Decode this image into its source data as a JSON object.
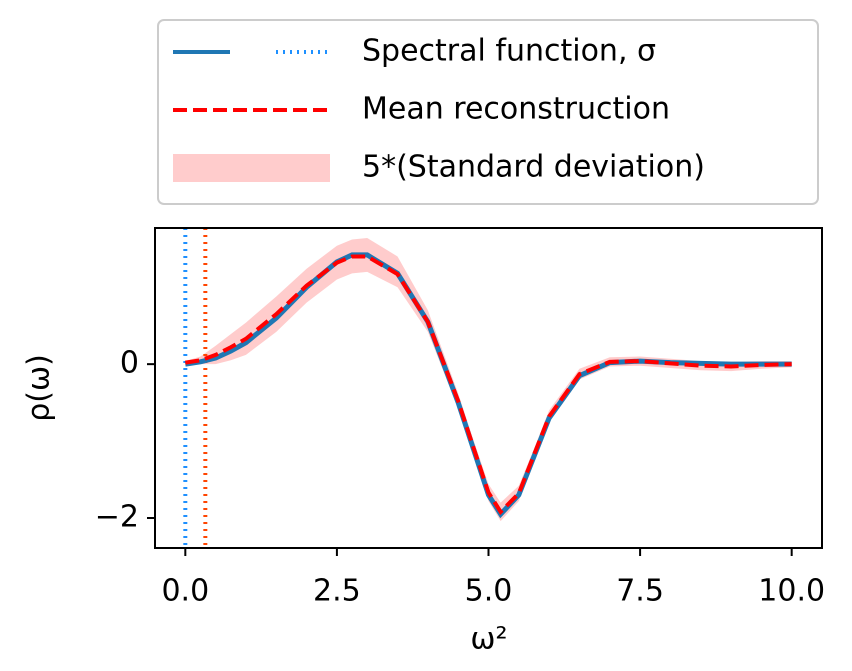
{
  "chart_data": {
    "type": "line",
    "xlabel": "ω²",
    "ylabel": "ρ(ω)",
    "x": [
      0,
      0.25,
      0.5,
      0.75,
      1,
      1.5,
      2,
      2.5,
      2.75,
      3,
      3.5,
      4,
      4.5,
      4.75,
      5,
      5.2,
      5.5,
      5.75,
      6,
      6.5,
      7,
      7.5,
      8,
      8.5,
      9,
      9.5,
      10
    ],
    "series": [
      {
        "name": "Spectral function, σ",
        "color": "#1f77b4",
        "style": "solid",
        "values": [
          0,
          0.03,
          0.08,
          0.17,
          0.28,
          0.6,
          1.0,
          1.33,
          1.42,
          1.42,
          1.18,
          0.55,
          -0.5,
          -1.1,
          -1.7,
          -1.95,
          -1.7,
          -1.2,
          -0.7,
          -0.15,
          0.02,
          0.04,
          0.02,
          0.01,
          0,
          0,
          0
        ]
      },
      {
        "name": "Mean reconstruction",
        "color": "#ff0000",
        "style": "dashed",
        "values": [
          0.02,
          0.05,
          0.12,
          0.22,
          0.33,
          0.65,
          1.02,
          1.32,
          1.4,
          1.4,
          1.17,
          0.55,
          -0.48,
          -1.08,
          -1.67,
          -1.92,
          -1.68,
          -1.18,
          -0.68,
          -0.13,
          0.03,
          0.04,
          0.01,
          -0.02,
          -0.03,
          -0.01,
          0
        ]
      }
    ],
    "band": {
      "name": "5*(Standard deviation)",
      "color": "#ffcccc",
      "lower": [
        0,
        0.0,
        0.0,
        0.05,
        0.12,
        0.42,
        0.8,
        1.1,
        1.18,
        1.2,
        1.0,
        0.42,
        -0.58,
        -1.18,
        -1.78,
        -2.04,
        -1.78,
        -1.26,
        -0.76,
        -0.2,
        -0.03,
        -0.02,
        -0.05,
        -0.08,
        -0.09,
        -0.06,
        -0.04
      ],
      "upper": [
        0.04,
        0.1,
        0.24,
        0.39,
        0.54,
        0.88,
        1.24,
        1.54,
        1.62,
        1.64,
        1.4,
        0.7,
        -0.38,
        -0.98,
        -1.56,
        -1.8,
        -1.58,
        -1.1,
        -0.6,
        -0.06,
        0.09,
        0.1,
        0.07,
        0.04,
        0.03,
        0.04,
        0.04
      ]
    },
    "vlines": [
      {
        "x": 0,
        "color": "#1e90ff"
      },
      {
        "x": 0.33,
        "color": "#ff4500"
      }
    ],
    "xlim": [
      -0.5,
      10.5
    ],
    "ylim": [
      -2.39,
      1.77
    ],
    "xticks": [
      {
        "value": 0,
        "label": "0.0"
      },
      2.5,
      {
        "value": 5,
        "label": "5.0"
      },
      7.5,
      {
        "value": 10,
        "label": "10.0"
      }
    ],
    "yticks": [
      {
        "value": -2,
        "label": "−2"
      },
      0
    ],
    "grid": false
  }
}
